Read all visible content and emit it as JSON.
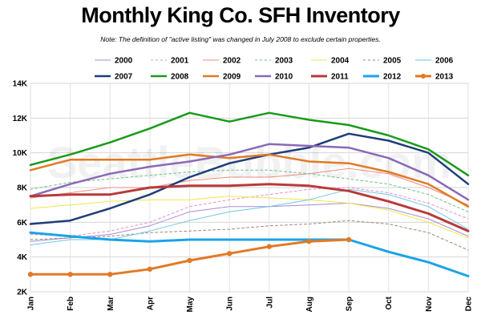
{
  "title": "Monthly King Co. SFH Inventory",
  "subtitle": "Note: The definition of \"active listing\" was changed in July 2008 to exclude certain properties.",
  "watermark": "SeattleBubble.com",
  "chart_data": {
    "type": "line",
    "categories": [
      "Jan",
      "Feb",
      "Mar",
      "Apr",
      "May",
      "Jun",
      "Jul",
      "Aug",
      "Sep",
      "Oct",
      "Nov",
      "Dec"
    ],
    "ylim": [
      2000,
      14000
    ],
    "yticks": [
      2000,
      4000,
      6000,
      8000,
      10000,
      12000,
      14000
    ],
    "ytick_labels": [
      "2K",
      "4K",
      "6K",
      "8K",
      "10K",
      "12K",
      "14K"
    ],
    "grid": true,
    "legend_position": "top",
    "series": [
      {
        "name": "2000",
        "color": "#a78bd0",
        "width": 1,
        "dash": "",
        "marker": false,
        "values": [
          4900,
          5100,
          5300,
          5800,
          6600,
          6900,
          6900,
          7000,
          7100,
          6800,
          6200,
          5200
        ]
      },
      {
        "name": "2001",
        "color": "#e78fc8",
        "width": 1,
        "dash": "3,3",
        "marker": false,
        "values": [
          5300,
          5200,
          5500,
          6000,
          6900,
          7300,
          7600,
          7900,
          8000,
          7700,
          7100,
          6200
        ]
      },
      {
        "name": "2002",
        "color": "#ef8a80",
        "width": 1,
        "dash": "",
        "marker": false,
        "values": [
          7400,
          7700,
          8000,
          8000,
          8400,
          8600,
          8600,
          8800,
          9100,
          8800,
          8000,
          7000
        ]
      },
      {
        "name": "2003",
        "color": "#6fc08c",
        "width": 1,
        "dash": "3,3",
        "marker": false,
        "values": [
          7900,
          8300,
          8500,
          8700,
          8900,
          9000,
          9000,
          8800,
          8500,
          8200,
          7600,
          6600
        ]
      },
      {
        "name": "2004",
        "color": "#f2e44a",
        "width": 1,
        "dash": "",
        "marker": false,
        "values": [
          6800,
          7000,
          7200,
          7300,
          7300,
          7500,
          7400,
          7300,
          7100,
          6700,
          6000,
          5100
        ]
      },
      {
        "name": "2005",
        "color": "#9a8878",
        "width": 1,
        "dash": "3,3",
        "marker": false,
        "values": [
          5000,
          5100,
          5200,
          5400,
          5500,
          5600,
          5800,
          5900,
          6100,
          5900,
          5400,
          4400
        ]
      },
      {
        "name": "2006",
        "color": "#6ec6e6",
        "width": 1,
        "dash": "",
        "marker": false,
        "values": [
          4700,
          5000,
          5000,
          5500,
          6100,
          6600,
          6900,
          7300,
          7900,
          7600,
          6900,
          5600
        ]
      },
      {
        "name": "2007",
        "color": "#1f3d7a",
        "width": 2.5,
        "dash": "",
        "marker": false,
        "values": [
          5900,
          6100,
          6800,
          7600,
          8600,
          9400,
          9900,
          10300,
          11100,
          10700,
          10000,
          8200
        ]
      },
      {
        "name": "2008",
        "color": "#1a9a1a",
        "width": 2.5,
        "dash": "",
        "marker": false,
        "values": [
          9300,
          9900,
          10600,
          11400,
          12300,
          11800,
          12300,
          11900,
          11600,
          11000,
          10200,
          8700
        ]
      },
      {
        "name": "2009",
        "color": "#e07a24",
        "width": 2.5,
        "dash": "",
        "marker": false,
        "values": [
          9000,
          9600,
          9600,
          9600,
          9900,
          9700,
          9900,
          9500,
          9400,
          8900,
          8200,
          6900
        ]
      },
      {
        "name": "2010",
        "color": "#8a68b8",
        "width": 2.5,
        "dash": "",
        "marker": false,
        "values": [
          7500,
          8200,
          8800,
          9200,
          9500,
          9900,
          10500,
          10400,
          10300,
          9700,
          8700,
          7300
        ]
      },
      {
        "name": "2011",
        "color": "#b83a3a",
        "width": 3,
        "dash": "",
        "marker": false,
        "values": [
          7500,
          7600,
          7600,
          8000,
          8100,
          8100,
          8200,
          8100,
          7800,
          7200,
          6500,
          5500
        ]
      },
      {
        "name": "2012",
        "color": "#1aa3e8",
        "width": 3,
        "dash": "",
        "marker": false,
        "values": [
          5400,
          5200,
          5000,
          4900,
          5000,
          5000,
          5000,
          5000,
          5000,
          4300,
          3700,
          2900
        ]
      },
      {
        "name": "2013",
        "color": "#e07a24",
        "width": 3,
        "dash": "",
        "marker": true,
        "values": [
          3000,
          3000,
          3000,
          3300,
          3800,
          4200,
          4600,
          4900,
          5000,
          null,
          null,
          null
        ]
      }
    ]
  }
}
